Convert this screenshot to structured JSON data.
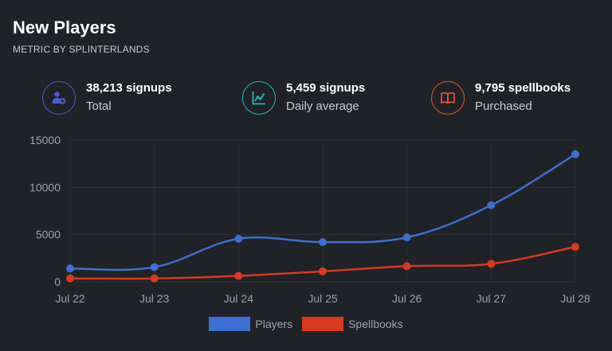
{
  "header": {
    "title": "New Players",
    "subtitle": "METRIC BY SPLINTERLANDS"
  },
  "stats": [
    {
      "value": "38,213 signups",
      "label": "Total",
      "icon": "add-user-icon",
      "color": "#4a5bd4"
    },
    {
      "value": "5,459 signups",
      "label": "Daily average",
      "icon": "line-chart-icon",
      "color": "#1fb8c4"
    },
    {
      "value": "9,795 spellbooks",
      "label": "Purchased",
      "icon": "book-icon",
      "color": "#e8542d"
    }
  ],
  "chart_data": {
    "type": "line",
    "categories": [
      "Jul 22",
      "Jul 23",
      "Jul 24",
      "Jul 25",
      "Jul 26",
      "Jul 27",
      "Jul 28"
    ],
    "series": [
      {
        "name": "Players",
        "color": "#3b6fd4",
        "values": [
          1400,
          1550,
          4550,
          4200,
          4700,
          8100,
          13500
        ]
      },
      {
        "name": "Spellbooks",
        "color": "#d9391c",
        "values": [
          350,
          350,
          620,
          1100,
          1650,
          1900,
          3700
        ]
      }
    ],
    "yticks": [
      "15000",
      "10000",
      "5000",
      "0"
    ],
    "ylim": [
      0,
      15000
    ],
    "grid": true,
    "legend": "bottom"
  }
}
